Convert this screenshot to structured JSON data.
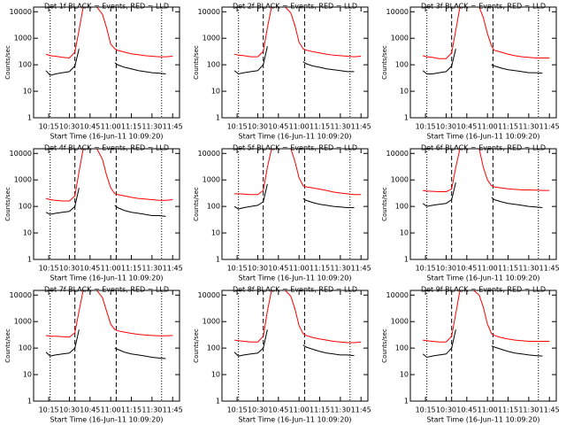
{
  "chart_data": [
    {
      "type": "line",
      "title": "Det 1f BLACK = Events, RED = LLD",
      "ylabel": "Counts/sec",
      "xlabel": "Start Time (16-Jun-11 10:09:20)",
      "log_y": true,
      "xlim": [
        "10:04",
        "11:50"
      ],
      "xticks": [
        "10:15",
        "10:30",
        "10:45",
        "11:00",
        "11:15",
        "11:30",
        "11:45"
      ],
      "ylim": [
        1,
        15000
      ],
      "yticks": [
        1,
        10,
        100,
        1000,
        10000
      ],
      "dashed_x": [
        "10:34",
        "11:04"
      ],
      "dotted_x": [
        "10:16",
        "11:37"
      ],
      "x": [
        "10:13",
        "10:16",
        "10:20",
        "10:25",
        "10:30",
        "10:34",
        "10:37",
        "10:40",
        "10:45",
        "10:50",
        "10:54",
        "10:57",
        "11:00",
        "11:03",
        "11:05",
        "11:10",
        "11:15",
        "11:20",
        "11:25",
        "11:30",
        "11:35",
        "11:40",
        "11:45"
      ],
      "series": [
        {
          "name": "LLD",
          "color": "#ff0000",
          "values": [
            250,
            220,
            210,
            190,
            180,
            300,
            2000,
            15000,
            15000,
            15000,
            8000,
            2500,
            600,
            400,
            350,
            300,
            260,
            240,
            220,
            210,
            200,
            200,
            210
          ]
        },
        {
          "name": "Events",
          "color": "#000000",
          "values": [
            60,
            40,
            45,
            50,
            55,
            90,
            400,
            null,
            null,
            null,
            null,
            null,
            null,
            120,
            100,
            80,
            70,
            60,
            55,
            50,
            48,
            45,
            null
          ]
        }
      ]
    },
    {
      "type": "line",
      "title": "Det 2f BLACK = Events, RED = LLD",
      "ylabel": "Counts/sec",
      "xlabel": "Start Time (16-Jun-11 10:09:20)",
      "log_y": true,
      "xlim": [
        "10:04",
        "11:50"
      ],
      "xticks": [
        "10:15",
        "10:30",
        "10:45",
        "11:00",
        "11:15",
        "11:30",
        "11:45"
      ],
      "ylim": [
        1,
        15000
      ],
      "yticks": [
        1,
        10,
        100,
        1000,
        10000
      ],
      "dashed_x": [
        "10:34",
        "11:04"
      ],
      "dotted_x": [
        "10:16",
        "11:37"
      ],
      "x": [
        "10:13",
        "10:16",
        "10:20",
        "10:25",
        "10:30",
        "10:34",
        "10:37",
        "10:40",
        "10:45",
        "10:50",
        "10:54",
        "10:57",
        "11:00",
        "11:03",
        "11:05",
        "11:10",
        "11:15",
        "11:20",
        "11:25",
        "11:30",
        "11:35",
        "11:40",
        "11:45"
      ],
      "series": [
        {
          "name": "LLD",
          "color": "#ff0000",
          "values": [
            250,
            230,
            220,
            200,
            200,
            320,
            2500,
            15000,
            15000,
            15000,
            9000,
            3000,
            700,
            400,
            360,
            310,
            280,
            250,
            230,
            220,
            210,
            200,
            210
          ]
        },
        {
          "name": "Events",
          "color": "#000000",
          "values": [
            60,
            45,
            50,
            55,
            60,
            100,
            500,
            null,
            null,
            null,
            null,
            null,
            null,
            130,
            110,
            90,
            80,
            70,
            65,
            60,
            55,
            55,
            null
          ]
        }
      ]
    },
    {
      "type": "line",
      "title": "Det 3f BLACK = Events, RED = LLD",
      "ylabel": "Counts/sec",
      "xlabel": "Start Time (16-Jun-11 10:09:20)",
      "log_y": true,
      "xlim": [
        "10:04",
        "11:50"
      ],
      "xticks": [
        "10:15",
        "10:30",
        "10:45",
        "11:00",
        "11:15",
        "11:30",
        "11:45"
      ],
      "ylim": [
        1,
        15000
      ],
      "yticks": [
        1,
        10,
        100,
        1000,
        10000
      ],
      "dashed_x": [
        "10:34",
        "11:04"
      ],
      "dotted_x": [
        "10:16",
        "11:37"
      ],
      "x": [
        "10:13",
        "10:16",
        "10:20",
        "10:25",
        "10:30",
        "10:34",
        "10:37",
        "10:40",
        "10:45",
        "10:50",
        "10:54",
        "10:57",
        "11:00",
        "11:03",
        "11:05",
        "11:10",
        "11:15",
        "11:20",
        "11:25",
        "11:30",
        "11:35",
        "11:40",
        "11:45"
      ],
      "series": [
        {
          "name": "LLD",
          "color": "#ff0000",
          "values": [
            220,
            200,
            190,
            170,
            170,
            280,
            2000,
            15000,
            15000,
            15000,
            15000,
            6000,
            1500,
            500,
            350,
            300,
            250,
            220,
            200,
            190,
            180,
            180,
            180
          ]
        },
        {
          "name": "Events",
          "color": "#000000",
          "values": [
            60,
            45,
            45,
            50,
            55,
            90,
            400,
            null,
            null,
            null,
            null,
            null,
            null,
            100,
            90,
            75,
            65,
            60,
            55,
            50,
            50,
            48,
            null
          ]
        }
      ]
    },
    {
      "type": "line",
      "title": "Det 4f BLACK = Events, RED = LLD",
      "ylabel": "Counts/sec",
      "xlabel": "Start Time (16-Jun-11 10:09:20)",
      "log_y": true,
      "xlim": [
        "10:04",
        "11:50"
      ],
      "xticks": [
        "10:15",
        "10:30",
        "10:45",
        "11:00",
        "11:15",
        "11:30",
        "11:45"
      ],
      "ylim": [
        1,
        15000
      ],
      "yticks": [
        1,
        10,
        100,
        1000,
        10000
      ],
      "dashed_x": [
        "10:34",
        "11:04"
      ],
      "dotted_x": [
        "10:16",
        "11:37"
      ],
      "x": [
        "10:13",
        "10:16",
        "10:20",
        "10:25",
        "10:30",
        "10:34",
        "10:37",
        "10:40",
        "10:45",
        "10:50",
        "10:54",
        "10:57",
        "11:00",
        "11:03",
        "11:05",
        "11:10",
        "11:15",
        "11:20",
        "11:25",
        "11:30",
        "11:35",
        "11:40",
        "11:45"
      ],
      "series": [
        {
          "name": "LLD",
          "color": "#ff0000",
          "values": [
            200,
            180,
            170,
            160,
            160,
            250,
            2000,
            15000,
            15000,
            15000,
            6000,
            1500,
            500,
            300,
            280,
            250,
            220,
            200,
            190,
            180,
            170,
            170,
            180
          ]
        },
        {
          "name": "Events",
          "color": "#000000",
          "values": [
            60,
            50,
            55,
            60,
            65,
            100,
            500,
            null,
            null,
            null,
            null,
            null,
            null,
            110,
            90,
            70,
            60,
            55,
            50,
            45,
            45,
            42,
            null
          ]
        }
      ]
    },
    {
      "type": "line",
      "title": "Det 5f BLACK = Events, RED = LLD",
      "ylabel": "Counts/sec",
      "xlabel": "Start Time (16-Jun-11 10:09:20)",
      "log_y": true,
      "xlim": [
        "10:04",
        "11:50"
      ],
      "xticks": [
        "10:15",
        "10:30",
        "10:45",
        "11:00",
        "11:15",
        "11:30",
        "11:45"
      ],
      "ylim": [
        1,
        15000
      ],
      "yticks": [
        1,
        10,
        100,
        1000,
        10000
      ],
      "dashed_x": [
        "10:34",
        "11:04"
      ],
      "dotted_x": [
        "10:16",
        "11:37"
      ],
      "x": [
        "10:13",
        "10:16",
        "10:20",
        "10:25",
        "10:30",
        "10:34",
        "10:37",
        "10:40",
        "10:45",
        "10:50",
        "10:54",
        "10:57",
        "11:00",
        "11:03",
        "11:05",
        "11:10",
        "11:15",
        "11:20",
        "11:25",
        "11:30",
        "11:35",
        "11:40",
        "11:45"
      ],
      "series": [
        {
          "name": "LLD",
          "color": "#ff0000",
          "values": [
            300,
            300,
            290,
            280,
            280,
            400,
            3000,
            15000,
            15000,
            15000,
            15000,
            5000,
            1200,
            600,
            550,
            500,
            450,
            400,
            350,
            320,
            300,
            280,
            280
          ]
        },
        {
          "name": "Events",
          "color": "#000000",
          "values": [
            100,
            80,
            90,
            100,
            110,
            150,
            700,
            null,
            null,
            null,
            null,
            null,
            null,
            200,
            170,
            140,
            120,
            110,
            100,
            95,
            90,
            90,
            null
          ]
        }
      ]
    },
    {
      "type": "line",
      "title": "Det 6f BLACK = Events, RED = LLD",
      "ylabel": "Counts/sec",
      "xlabel": "Start Time (16-Jun-11 10:09:20)",
      "log_y": true,
      "xlim": [
        "10:04",
        "11:50"
      ],
      "xticks": [
        "10:15",
        "10:30",
        "10:45",
        "11:00",
        "11:15",
        "11:30",
        "11:45"
      ],
      "ylim": [
        1,
        15000
      ],
      "yticks": [
        1,
        10,
        100,
        1000,
        10000
      ],
      "dashed_x": [
        "10:34",
        "11:04"
      ],
      "dotted_x": [
        "10:16",
        "11:37"
      ],
      "x": [
        "10:13",
        "10:16",
        "10:20",
        "10:25",
        "10:30",
        "10:34",
        "10:37",
        "10:40",
        "10:45",
        "10:50",
        "10:54",
        "10:57",
        "11:00",
        "11:03",
        "11:05",
        "11:10",
        "11:15",
        "11:20",
        "11:25",
        "11:30",
        "11:35",
        "11:40",
        "11:45"
      ],
      "series": [
        {
          "name": "LLD",
          "color": "#ff0000",
          "values": [
            400,
            380,
            370,
            360,
            360,
            450,
            3000,
            15000,
            15000,
            15000,
            15000,
            3000,
            1000,
            600,
            550,
            500,
            460,
            440,
            420,
            420,
            410,
            400,
            400
          ]
        },
        {
          "name": "Events",
          "color": "#000000",
          "values": [
            130,
            100,
            110,
            120,
            130,
            180,
            800,
            null,
            null,
            null,
            null,
            null,
            null,
            220,
            180,
            150,
            130,
            120,
            110,
            100,
            95,
            90,
            null
          ]
        }
      ]
    },
    {
      "type": "line",
      "title": "Det 7f BLACK = Events, RED = LLD",
      "ylabel": "Counts/sec",
      "xlabel": "Start Time (16-Jun-11 10:09:20)",
      "log_y": true,
      "xlim": [
        "10:04",
        "11:50"
      ],
      "xticks": [
        "10:15",
        "10:30",
        "10:45",
        "11:00",
        "11:15",
        "11:30",
        "11:45"
      ],
      "ylim": [
        1,
        15000
      ],
      "yticks": [
        1,
        10,
        100,
        1000,
        10000
      ],
      "dashed_x": [
        "10:34",
        "11:04"
      ],
      "dotted_x": [
        "10:16",
        "11:37"
      ],
      "x": [
        "10:13",
        "10:16",
        "10:20",
        "10:25",
        "10:30",
        "10:34",
        "10:37",
        "10:40",
        "10:45",
        "10:50",
        "10:54",
        "10:57",
        "11:00",
        "11:03",
        "11:05",
        "11:10",
        "11:15",
        "11:20",
        "11:25",
        "11:30",
        "11:35",
        "11:40",
        "11:45"
      ],
      "series": [
        {
          "name": "LLD",
          "color": "#ff0000",
          "values": [
            300,
            280,
            280,
            270,
            260,
            380,
            2500,
            15000,
            15000,
            15000,
            8000,
            2500,
            800,
            500,
            450,
            400,
            360,
            330,
            310,
            300,
            290,
            290,
            300
          ]
        },
        {
          "name": "Events",
          "color": "#000000",
          "values": [
            70,
            50,
            55,
            60,
            65,
            100,
            500,
            null,
            null,
            null,
            null,
            null,
            null,
            100,
            90,
            70,
            60,
            55,
            50,
            45,
            42,
            40,
            null
          ]
        }
      ]
    },
    {
      "type": "line",
      "title": "Det 8f BLACK = Events, RED = LLD",
      "ylabel": "Counts/sec",
      "xlabel": "Start Time (16-Jun-11 10:09:20)",
      "log_y": true,
      "xlim": [
        "10:04",
        "11:50"
      ],
      "xticks": [
        "10:15",
        "10:30",
        "10:45",
        "11:00",
        "11:15",
        "11:30",
        "11:45"
      ],
      "ylim": [
        1,
        15000
      ],
      "yticks": [
        1,
        10,
        100,
        1000,
        10000
      ],
      "dashed_x": [
        "10:34",
        "11:04"
      ],
      "dotted_x": [
        "10:16",
        "11:37"
      ],
      "x": [
        "10:13",
        "10:16",
        "10:20",
        "10:25",
        "10:30",
        "10:34",
        "10:37",
        "10:40",
        "10:45",
        "10:50",
        "10:54",
        "10:57",
        "11:00",
        "11:03",
        "11:05",
        "11:10",
        "11:15",
        "11:20",
        "11:25",
        "11:30",
        "11:35",
        "11:40",
        "11:45"
      ],
      "series": [
        {
          "name": "LLD",
          "color": "#ff0000",
          "values": [
            200,
            190,
            180,
            170,
            170,
            280,
            2500,
            15000,
            15000,
            15000,
            9000,
            3000,
            700,
            350,
            300,
            250,
            220,
            200,
            180,
            170,
            160,
            160,
            170
          ]
        },
        {
          "name": "Events",
          "color": "#000000",
          "values": [
            70,
            50,
            55,
            60,
            65,
            100,
            500,
            null,
            null,
            null,
            null,
            null,
            null,
            130,
            110,
            90,
            75,
            65,
            60,
            55,
            55,
            52,
            null
          ]
        }
      ]
    },
    {
      "type": "line",
      "title": "Det 9f BLACK = Events, RED = LLD",
      "ylabel": "Counts/sec",
      "xlabel": "Start Time (16-Jun-11 10:09:20)",
      "log_y": true,
      "xlim": [
        "10:04",
        "11:50"
      ],
      "xticks": [
        "10:15",
        "10:30",
        "10:45",
        "11:00",
        "11:15",
        "11:30",
        "11:45"
      ],
      "ylim": [
        1,
        15000
      ],
      "yticks": [
        1,
        10,
        100,
        1000,
        10000
      ],
      "dashed_x": [
        "10:34",
        "11:04"
      ],
      "dotted_x": [
        "10:16",
        "11:37"
      ],
      "x": [
        "10:13",
        "10:16",
        "10:20",
        "10:25",
        "10:30",
        "10:34",
        "10:37",
        "10:40",
        "10:45",
        "10:50",
        "10:54",
        "10:57",
        "11:00",
        "11:03",
        "11:05",
        "11:10",
        "11:15",
        "11:20",
        "11:25",
        "11:30",
        "11:35",
        "11:40",
        "11:45"
      ],
      "series": [
        {
          "name": "LLD",
          "color": "#ff0000",
          "values": [
            200,
            190,
            180,
            170,
            170,
            280,
            2000,
            15000,
            15000,
            15000,
            10000,
            3500,
            800,
            350,
            300,
            250,
            220,
            200,
            190,
            180,
            180,
            180,
            180
          ]
        },
        {
          "name": "Events",
          "color": "#000000",
          "values": [
            60,
            45,
            50,
            55,
            60,
            100,
            500,
            null,
            null,
            null,
            null,
            null,
            null,
            120,
            110,
            90,
            75,
            65,
            60,
            55,
            52,
            50,
            null
          ]
        }
      ]
    }
  ]
}
